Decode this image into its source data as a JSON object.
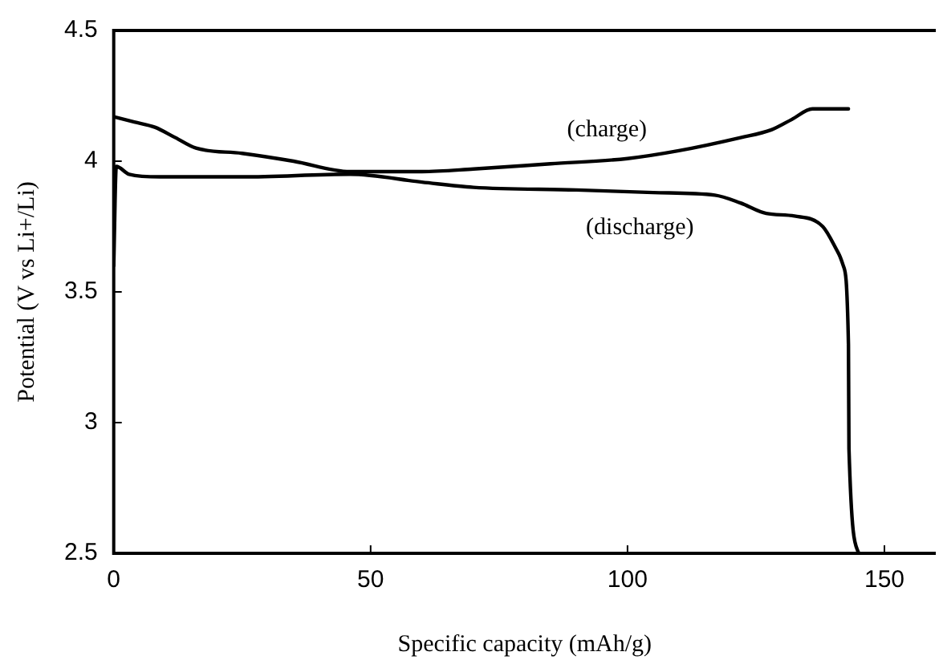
{
  "chart_data": {
    "type": "line",
    "xlabel": "Specific capacity (mAh/g)",
    "ylabel": "Potential (V vs Li+/Li)",
    "xlim": [
      0,
      160
    ],
    "xticks": [
      0,
      50,
      100,
      150
    ],
    "ylim": [
      2.5,
      4.5
    ],
    "yticks": [
      2.5,
      3,
      3.5,
      4,
      4.5
    ],
    "grid": false,
    "legend": false,
    "marker": "none",
    "line_style": "solid",
    "series": [
      {
        "name": "(charge)",
        "color": "#000000",
        "x": [
          0,
          4,
          8,
          12,
          16,
          25,
          35,
          46,
          60,
          70,
          85,
          100,
          110,
          122,
          128,
          132,
          136,
          143
        ],
        "values": [
          4.17,
          4.15,
          4.13,
          4.09,
          4.05,
          4.03,
          4.0,
          3.96,
          3.96,
          3.97,
          3.99,
          4.01,
          4.04,
          4.09,
          4.12,
          4.16,
          4.2,
          4.2
        ]
      },
      {
        "name": "(discharge)",
        "color": "#000000",
        "x": [
          0,
          0.5,
          3,
          9,
          25,
          46,
          60,
          70,
          90,
          105,
          117,
          122,
          127,
          132.5,
          138,
          141,
          142,
          143,
          143.1,
          145
        ],
        "values": [
          3.6,
          3.98,
          3.95,
          3.94,
          3.94,
          3.95,
          3.92,
          3.9,
          3.89,
          3.88,
          3.87,
          3.84,
          3.8,
          3.79,
          3.75,
          3.65,
          3.6,
          3.3,
          2.9,
          2.5
        ]
      }
    ]
  }
}
